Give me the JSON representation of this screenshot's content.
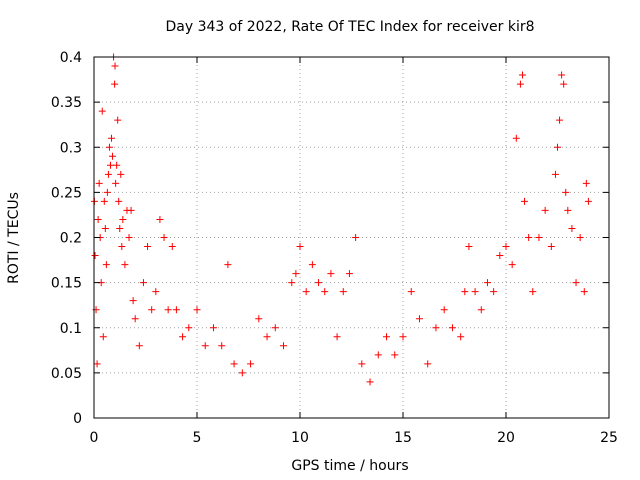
{
  "chart_data": {
    "type": "scatter",
    "title": "Day 343 of 2022, Rate Of TEC Index for receiver kir8",
    "xlabel": "GPS time / hours",
    "ylabel": "ROTI / TECUs",
    "xlim": [
      0,
      25
    ],
    "ylim": [
      0,
      0.4
    ],
    "xticks": [
      0,
      5,
      10,
      15,
      20,
      25
    ],
    "yticks": [
      0,
      0.05,
      0.1,
      0.15,
      0.2,
      0.25,
      0.3,
      0.35,
      0.4
    ],
    "grid": true,
    "marker": "+",
    "color": "#ff0000",
    "series": [
      {
        "points": [
          [
            0.02,
            0.24
          ],
          [
            0.05,
            0.18
          ],
          [
            0.1,
            0.12
          ],
          [
            0.15,
            0.06
          ],
          [
            0.2,
            0.22
          ],
          [
            0.25,
            0.26
          ],
          [
            0.3,
            0.2
          ],
          [
            0.35,
            0.15
          ],
          [
            0.4,
            0.34
          ],
          [
            0.45,
            0.09
          ],
          [
            0.5,
            0.24
          ],
          [
            0.55,
            0.21
          ],
          [
            0.6,
            0.17
          ],
          [
            0.65,
            0.25
          ],
          [
            0.7,
            0.27
          ],
          [
            0.75,
            0.3
          ],
          [
            0.8,
            0.28
          ],
          [
            0.85,
            0.31
          ],
          [
            0.9,
            0.29
          ],
          [
            0.95,
            0.4
          ],
          [
            1.0,
            0.37
          ],
          [
            1.02,
            0.39
          ],
          [
            1.05,
            0.26
          ],
          [
            1.1,
            0.28
          ],
          [
            1.15,
            0.33
          ],
          [
            1.2,
            0.24
          ],
          [
            1.25,
            0.21
          ],
          [
            1.3,
            0.27
          ],
          [
            1.35,
            0.19
          ],
          [
            1.4,
            0.22
          ],
          [
            1.5,
            0.17
          ],
          [
            1.6,
            0.23
          ],
          [
            1.7,
            0.2
          ],
          [
            1.8,
            0.23
          ],
          [
            1.9,
            0.13
          ],
          [
            2.0,
            0.11
          ],
          [
            2.2,
            0.08
          ],
          [
            2.4,
            0.15
          ],
          [
            2.6,
            0.19
          ],
          [
            2.8,
            0.12
          ],
          [
            3.0,
            0.14
          ],
          [
            3.2,
            0.22
          ],
          [
            3.4,
            0.2
          ],
          [
            3.6,
            0.12
          ],
          [
            3.8,
            0.19
          ],
          [
            4.0,
            0.12
          ],
          [
            4.3,
            0.09
          ],
          [
            4.6,
            0.1
          ],
          [
            5.0,
            0.12
          ],
          [
            5.4,
            0.08
          ],
          [
            5.8,
            0.1
          ],
          [
            6.2,
            0.08
          ],
          [
            6.5,
            0.17
          ],
          [
            6.8,
            0.06
          ],
          [
            7.2,
            0.05
          ],
          [
            7.6,
            0.06
          ],
          [
            8.0,
            0.11
          ],
          [
            8.4,
            0.09
          ],
          [
            8.8,
            0.1
          ],
          [
            9.2,
            0.08
          ],
          [
            9.6,
            0.15
          ],
          [
            9.8,
            0.16
          ],
          [
            10.0,
            0.19
          ],
          [
            10.3,
            0.14
          ],
          [
            10.6,
            0.17
          ],
          [
            10.9,
            0.15
          ],
          [
            11.2,
            0.14
          ],
          [
            11.5,
            0.16
          ],
          [
            11.8,
            0.09
          ],
          [
            12.1,
            0.14
          ],
          [
            12.4,
            0.16
          ],
          [
            12.7,
            0.2
          ],
          [
            13.0,
            0.06
          ],
          [
            13.4,
            0.04
          ],
          [
            13.8,
            0.07
          ],
          [
            14.2,
            0.09
          ],
          [
            14.6,
            0.07
          ],
          [
            15.0,
            0.09
          ],
          [
            15.4,
            0.14
          ],
          [
            15.8,
            0.11
          ],
          [
            16.2,
            0.06
          ],
          [
            16.6,
            0.1
          ],
          [
            17.0,
            0.12
          ],
          [
            17.4,
            0.1
          ],
          [
            17.8,
            0.09
          ],
          [
            18.0,
            0.14
          ],
          [
            18.2,
            0.19
          ],
          [
            18.5,
            0.14
          ],
          [
            18.8,
            0.12
          ],
          [
            19.1,
            0.15
          ],
          [
            19.4,
            0.14
          ],
          [
            19.7,
            0.18
          ],
          [
            20.0,
            0.19
          ],
          [
            20.3,
            0.17
          ],
          [
            20.5,
            0.31
          ],
          [
            20.7,
            0.37
          ],
          [
            20.8,
            0.38
          ],
          [
            20.9,
            0.24
          ],
          [
            21.1,
            0.2
          ],
          [
            21.3,
            0.14
          ],
          [
            21.6,
            0.2
          ],
          [
            21.9,
            0.23
          ],
          [
            22.2,
            0.19
          ],
          [
            22.4,
            0.27
          ],
          [
            22.5,
            0.3
          ],
          [
            22.6,
            0.33
          ],
          [
            22.7,
            0.38
          ],
          [
            22.8,
            0.37
          ],
          [
            22.9,
            0.25
          ],
          [
            23.0,
            0.23
          ],
          [
            23.2,
            0.21
          ],
          [
            23.4,
            0.15
          ],
          [
            23.6,
            0.2
          ],
          [
            23.8,
            0.14
          ],
          [
            23.9,
            0.26
          ],
          [
            24.0,
            0.24
          ]
        ]
      }
    ]
  }
}
